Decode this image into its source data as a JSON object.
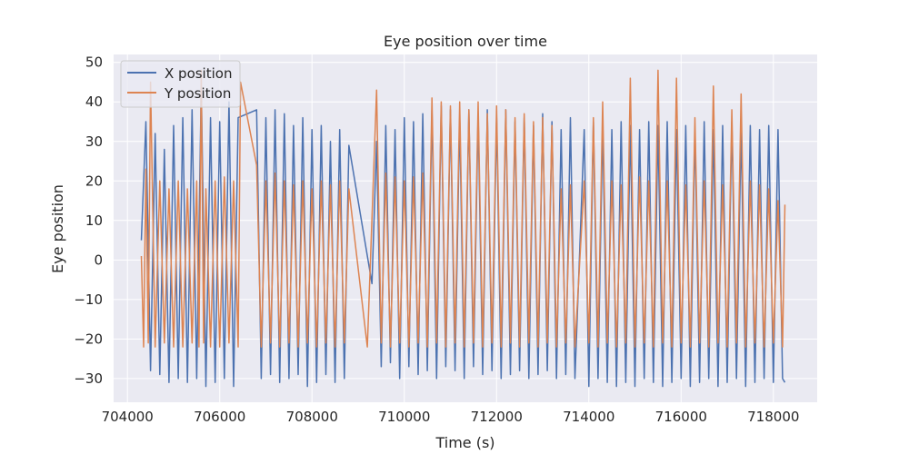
{
  "chart_data": {
    "type": "line",
    "title": "Eye position over time",
    "xlabel": "Time (s)",
    "ylabel": "Eye position",
    "xlim": [
      703700,
      718950
    ],
    "ylim": [
      -36,
      52
    ],
    "xticks": [
      704000,
      706000,
      708000,
      710000,
      712000,
      714000,
      716000,
      718000
    ],
    "xtick_labels": [
      "704000",
      "706000",
      "708000",
      "710000",
      "712000",
      "714000",
      "716000",
      "718000"
    ],
    "yticks": [
      -30,
      -20,
      -10,
      0,
      10,
      20,
      30,
      40,
      50
    ],
    "ytick_labels": [
      "−30",
      "−20",
      "−10",
      "0",
      "10",
      "20",
      "30",
      "40",
      "50"
    ],
    "grid": true,
    "legend_position": "top-left",
    "background_color": "#eaeaf2",
    "grid_color": "#ffffff",
    "series": [
      {
        "name": "X position",
        "color": "#4c72b0",
        "x": [
          704300,
          704400,
          704500,
          704600,
          704700,
          704800,
          704900,
          705000,
          705100,
          705200,
          705300,
          705400,
          705500,
          705600,
          705700,
          705800,
          705900,
          706000,
          706100,
          706200,
          706300,
          706400,
          706800,
          706900,
          707000,
          707100,
          707200,
          707300,
          707400,
          707500,
          707600,
          707700,
          707800,
          707900,
          708000,
          708100,
          708200,
          708300,
          708400,
          708500,
          708600,
          708700,
          708800,
          709300,
          709400,
          709500,
          709600,
          709700,
          709800,
          709900,
          710000,
          710100,
          710200,
          710300,
          710400,
          710500,
          710600,
          710700,
          710800,
          710900,
          711000,
          711100,
          711200,
          711300,
          711400,
          711500,
          711600,
          711700,
          711800,
          711900,
          712000,
          712100,
          712200,
          712300,
          712400,
          712500,
          712600,
          712700,
          712800,
          712900,
          713000,
          713100,
          713200,
          713300,
          713400,
          713500,
          713600,
          713700,
          713900,
          714000,
          714100,
          714200,
          714300,
          714400,
          714500,
          714600,
          714700,
          714800,
          714900,
          715000,
          715100,
          715200,
          715300,
          715400,
          715500,
          715600,
          715700,
          715800,
          715900,
          716000,
          716100,
          716200,
          716300,
          716400,
          716500,
          716600,
          716700,
          716800,
          716900,
          717000,
          717100,
          717200,
          717300,
          717400,
          717500,
          717600,
          717700,
          717800,
          717900,
          718000,
          718100,
          718200,
          718250
        ],
        "y": [
          5,
          35,
          -28,
          32,
          -29,
          28,
          -31,
          34,
          -30,
          36,
          -31,
          38,
          -30,
          44,
          -32,
          36,
          -31,
          35,
          -30,
          40,
          -32,
          36,
          38,
          -30,
          36,
          -29,
          38,
          -31,
          37,
          -30,
          34,
          -29,
          36,
          -32,
          33,
          -31,
          34,
          -29,
          30,
          -31,
          33,
          -30,
          29,
          -6,
          30,
          -27,
          34,
          -26,
          33,
          -30,
          36,
          -27,
          35,
          -29,
          37,
          -28,
          38,
          -30,
          39,
          -27,
          38,
          -28,
          36,
          -30,
          38,
          -27,
          37,
          -29,
          38,
          -28,
          36,
          -30,
          38,
          -29,
          35,
          -28,
          36,
          -30,
          34,
          -29,
          37,
          -28,
          35,
          -30,
          33,
          -29,
          36,
          -30,
          33,
          -32,
          35,
          -30,
          34,
          -31,
          33,
          -32,
          35,
          -31,
          34,
          -32,
          33,
          -30,
          35,
          -31,
          34,
          -32,
          35,
          -31,
          33,
          -30,
          34,
          -32,
          33,
          -31,
          35,
          -30,
          33,
          -32,
          34,
          -31,
          35,
          -30,
          33,
          -32,
          34,
          -31,
          33,
          -30,
          34,
          -31,
          33,
          -30,
          -31
        ]
      },
      {
        "name": "Y position",
        "color": "#dd8452",
        "x": [
          704300,
          704350,
          704400,
          704450,
          704500,
          704600,
          704700,
          704800,
          704900,
          705000,
          705100,
          705200,
          705300,
          705400,
          705500,
          705550,
          705600,
          705650,
          705700,
          705800,
          705900,
          706000,
          706100,
          706200,
          706300,
          706400,
          706450,
          706800,
          706900,
          707000,
          707100,
          707200,
          707300,
          707400,
          707500,
          707600,
          707700,
          707800,
          707900,
          708000,
          708100,
          708200,
          708300,
          708400,
          708500,
          708600,
          708700,
          708800,
          709200,
          709400,
          709500,
          709600,
          709700,
          709800,
          709900,
          710000,
          710100,
          710200,
          710300,
          710400,
          710500,
          710600,
          710700,
          710800,
          710900,
          711000,
          711100,
          711200,
          711300,
          711400,
          711500,
          711600,
          711700,
          711800,
          711900,
          712000,
          712100,
          712200,
          712300,
          712400,
          712500,
          712600,
          712700,
          712800,
          712900,
          713000,
          713100,
          713200,
          713300,
          713400,
          713500,
          713600,
          713700,
          713900,
          714000,
          714100,
          714200,
          714300,
          714400,
          714500,
          714600,
          714700,
          714800,
          714900,
          715000,
          715100,
          715200,
          715300,
          715400,
          715500,
          715600,
          715700,
          715800,
          715900,
          716000,
          716100,
          716200,
          716300,
          716400,
          716500,
          716600,
          716700,
          716800,
          716900,
          717000,
          717100,
          717200,
          717300,
          717400,
          717500,
          717600,
          717700,
          717800,
          717900,
          718000,
          718100,
          718200,
          718250
        ],
        "y": [
          1,
          -22,
          23,
          -21,
          45,
          -22,
          20,
          -21,
          18,
          -22,
          20,
          -22,
          18,
          -21,
          20,
          -22,
          48,
          -21,
          18,
          -22,
          20,
          -22,
          21,
          -21,
          20,
          -22,
          45,
          24,
          -22,
          20,
          -21,
          22,
          -22,
          20,
          -21,
          19,
          -22,
          20,
          -21,
          18,
          -22,
          20,
          -21,
          19,
          -22,
          20,
          -21,
          18,
          -22,
          43,
          -21,
          22,
          -22,
          21,
          -21,
          20,
          -22,
          21,
          -21,
          22,
          -22,
          41,
          -21,
          40,
          -22,
          39,
          -21,
          40,
          -22,
          38,
          -21,
          40,
          -22,
          37,
          -21,
          39,
          -22,
          38,
          -21,
          36,
          -22,
          37,
          -21,
          35,
          -22,
          36,
          -21,
          34,
          -22,
          18,
          -21,
          19,
          -22,
          20,
          -21,
          36,
          -22,
          40,
          -21,
          20,
          -22,
          19,
          -21,
          46,
          -22,
          21,
          -21,
          20,
          -22,
          48,
          -21,
          20,
          -22,
          46,
          -21,
          19,
          -22,
          36,
          -21,
          20,
          -22,
          44,
          -21,
          19,
          -22,
          38,
          -21,
          42,
          -22,
          20,
          -21,
          19,
          -22,
          18,
          -21,
          15,
          -22,
          14
        ]
      }
    ]
  }
}
